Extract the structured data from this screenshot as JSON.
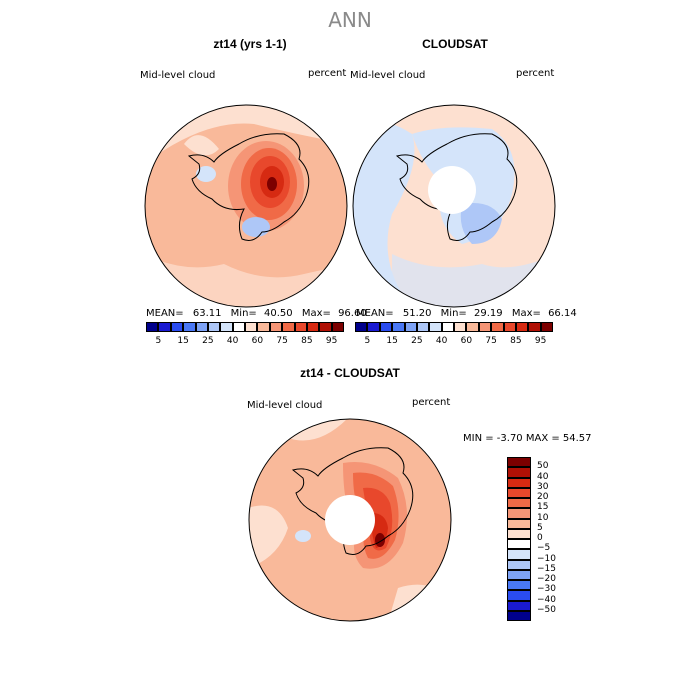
{
  "figure_title": "ANN",
  "panels": {
    "model": {
      "title": "zt14 (yrs 1-1)",
      "left_label": "Mid-level cloud",
      "right_label": "percent",
      "stats": {
        "mean_label": "MEAN=",
        "mean": "63.11",
        "min_label": "Min=",
        "min": "40.50",
        "max_label": "Max=",
        "max": "96.60"
      }
    },
    "obs": {
      "title": "CLOUDSAT",
      "left_label": "Mid-level cloud",
      "right_label": "percent",
      "stats": {
        "mean_label": "MEAN=",
        "mean": "51.20",
        "min_label": "Min=",
        "min": "29.19",
        "max_label": "Max=",
        "max": "66.14"
      }
    },
    "diff": {
      "title": "zt14 - CLOUDSAT",
      "left_label": "Mid-level cloud",
      "right_label": "percent",
      "minmax": "MIN =   -3.70 MAX =   54.57"
    }
  },
  "colorbar_abs": {
    "labels": [
      "5",
      "15",
      "25",
      "40",
      "60",
      "75",
      "85",
      "95"
    ],
    "colors": [
      "#00008c",
      "#1a1ad1",
      "#2a4cf0",
      "#4a78f5",
      "#7ea3f6",
      "#aec7f7",
      "#d4e4fa",
      "#ffffff",
      "#fde0d0",
      "#f9b99a",
      "#f59576",
      "#f06a47",
      "#e8482c",
      "#d62a12",
      "#b01005",
      "#7c0000"
    ]
  },
  "colorbar_diff": {
    "labels": [
      "50",
      "40",
      "30",
      "20",
      "15",
      "10",
      "5",
      "0",
      "−5",
      "−10",
      "−15",
      "−20",
      "−30",
      "−40",
      "−50"
    ],
    "colors": [
      "#7c0000",
      "#b01005",
      "#d62a12",
      "#e8482c",
      "#f06a47",
      "#f59576",
      "#f9b99a",
      "#fde0d0",
      "#ffffff",
      "#d4e4fa",
      "#aec7f7",
      "#7ea3f6",
      "#4a78f5",
      "#2a4cf0",
      "#1a1ad1",
      "#00008c"
    ]
  }
}
